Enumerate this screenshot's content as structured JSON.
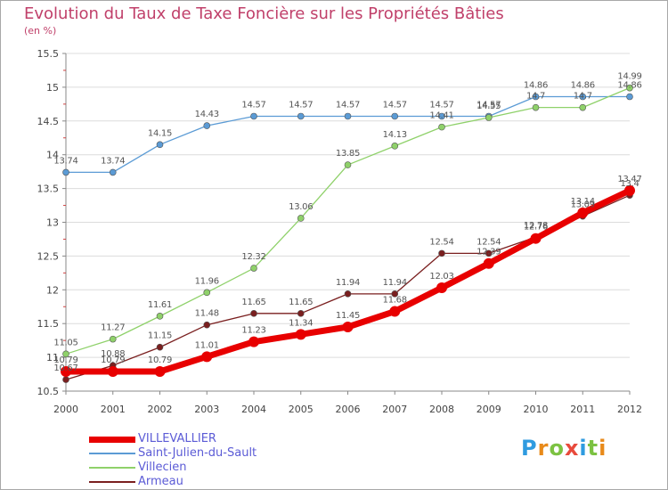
{
  "title": "Evolution du Taux de Taxe Foncière sur les Propriétés Bâties",
  "subtitle": "(en %)",
  "logo": {
    "text": "Proxiti",
    "letters": [
      "P",
      "r",
      "o",
      "x",
      "i",
      "t",
      "i"
    ],
    "letter_colors": [
      "#2f9be0",
      "#e88a1a",
      "#7cc242",
      "#e84a3c",
      "#2f9be0",
      "#7cc242",
      "#e88a1a"
    ]
  },
  "colors": {
    "axis": "#888888",
    "grid": "#dcdcdc",
    "tick_text": "#444444",
    "label_text": "#555555",
    "legend_text": "#5b5bd6",
    "frame": "#a8a8a8"
  },
  "chart_data": {
    "type": "line",
    "title": "Evolution du Taux de Taxe Foncière sur les Propriétés Bâties",
    "ylabel": "(en %)",
    "xlabel": "",
    "x": [
      "2000",
      "2001",
      "2002",
      "2003",
      "2004",
      "2005",
      "2006",
      "2007",
      "2008",
      "2009",
      "2010",
      "2011",
      "2012"
    ],
    "ylim": [
      10.5,
      15.5
    ],
    "yticks": [
      "10.5",
      "11",
      "11.5",
      "12",
      "12.5",
      "13",
      "13.5",
      "14",
      "14.5",
      "15",
      "15.5"
    ],
    "grid": "horizontal",
    "legend_position": "bottom-left",
    "series": [
      {
        "name": "VILLEVALLIER",
        "color": "#e80000",
        "line_width": 7,
        "marker_radius": 6,
        "values": [
          10.79,
          10.79,
          10.79,
          11.01,
          11.23,
          11.34,
          11.45,
          11.68,
          12.03,
          12.39,
          12.76,
          13.14,
          13.47
        ],
        "labels": [
          "10.79",
          "10.79",
          "10.79",
          "11.01",
          "11.23",
          "11.34",
          "11.45",
          "11.68",
          "12.03",
          "12.39",
          "12.76",
          "13.14",
          "13.47"
        ]
      },
      {
        "name": "Saint-Julien-du-Sault",
        "color": "#5b9bd5",
        "line_width": 1.3,
        "marker_radius": 3.5,
        "values": [
          13.74,
          13.74,
          14.15,
          14.43,
          14.57,
          14.57,
          14.57,
          14.57,
          14.57,
          14.57,
          14.86,
          14.86,
          14.86
        ],
        "labels": [
          "13.74",
          "13.74",
          "14.15",
          "14.43",
          "14.57",
          "14.57",
          "14.57",
          "14.57",
          "14.57",
          "14.57",
          "14.86",
          "14.86",
          "14.86"
        ]
      },
      {
        "name": "Villecien",
        "color": "#8fd16a",
        "line_width": 1.3,
        "marker_radius": 3.5,
        "values": [
          11.05,
          11.27,
          11.61,
          11.96,
          12.32,
          13.06,
          13.85,
          14.13,
          14.41,
          14.55,
          14.7,
          14.7,
          14.99
        ],
        "labels": [
          "11.05",
          "11.27",
          "11.61",
          "11.96",
          "12.32",
          "13.06",
          "13.85",
          "14.13",
          "14.41",
          "14.55",
          "14.7",
          "14.7",
          "14.99"
        ]
      },
      {
        "name": "Armeau",
        "color": "#7a1f1f",
        "line_width": 1.3,
        "marker_radius": 3.5,
        "values": [
          10.67,
          10.88,
          11.15,
          11.48,
          11.65,
          11.65,
          11.94,
          11.94,
          12.54,
          12.54,
          12.78,
          13.09,
          13.4
        ],
        "labels": [
          "10.67",
          "10.88",
          "11.15",
          "11.48",
          "11.65",
          "11.65",
          "11.94",
          "11.94",
          "12.54",
          "12.54",
          "12.78",
          "13.09",
          "13.4"
        ]
      }
    ]
  }
}
